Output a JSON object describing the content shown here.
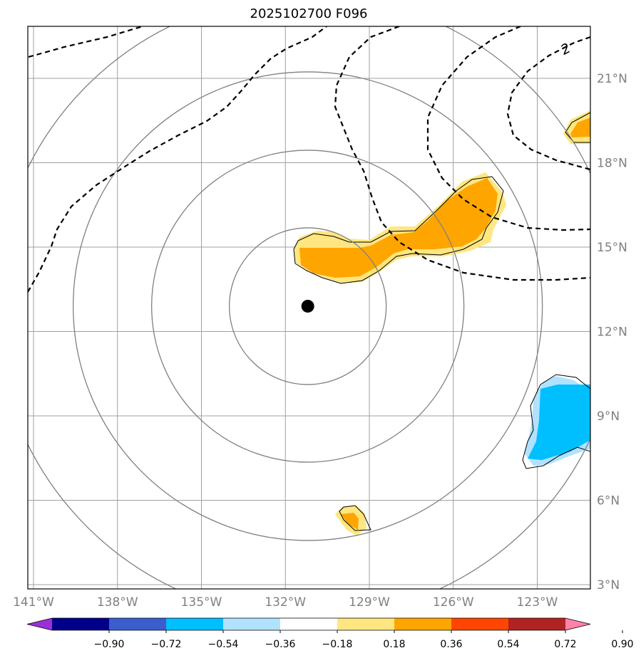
{
  "title": "2025102700 F096",
  "center_marker": {
    "lon": -131.2,
    "lat": 12.9
  },
  "lon_ticks": [
    {
      "value": -141,
      "label": "141°W"
    },
    {
      "value": -138,
      "label": "138°W"
    },
    {
      "value": -135,
      "label": "135°W"
    },
    {
      "value": -132,
      "label": "132°W"
    },
    {
      "value": -129,
      "label": "129°W"
    },
    {
      "value": -126,
      "label": "126°W"
    },
    {
      "value": -123,
      "label": "123°W"
    }
  ],
  "lat_ticks": [
    {
      "value": 3,
      "label": "3°N"
    },
    {
      "value": 6,
      "label": "6°N"
    },
    {
      "value": 9,
      "label": "9°N"
    },
    {
      "value": 12,
      "label": "12°N"
    },
    {
      "value": 15,
      "label": "15°N"
    },
    {
      "value": 18,
      "label": "18°N"
    },
    {
      "value": 21,
      "label": "21°N"
    }
  ],
  "contour_label": "2",
  "colorbar": {
    "labels": [
      "−0.90",
      "−0.72",
      "−0.54",
      "−0.36",
      "−0.18",
      "0.18",
      "0.36",
      "0.54",
      "0.72",
      "0.90"
    ],
    "colors": [
      "#9b30d9",
      "#00008b",
      "#3a5fcd",
      "#00bfff",
      "#b0e2ff",
      "#ffffff",
      "#ffe680",
      "#ffa500",
      "#ff4500",
      "#b22222",
      "#ff82ab"
    ]
  },
  "colors": {
    "positive_light": "#ffe680",
    "positive": "#ffa500",
    "negative_light": "#b0e2ff",
    "negative": "#00bfff",
    "grid": "#a0a0a0",
    "range_rings": "#808080"
  }
}
